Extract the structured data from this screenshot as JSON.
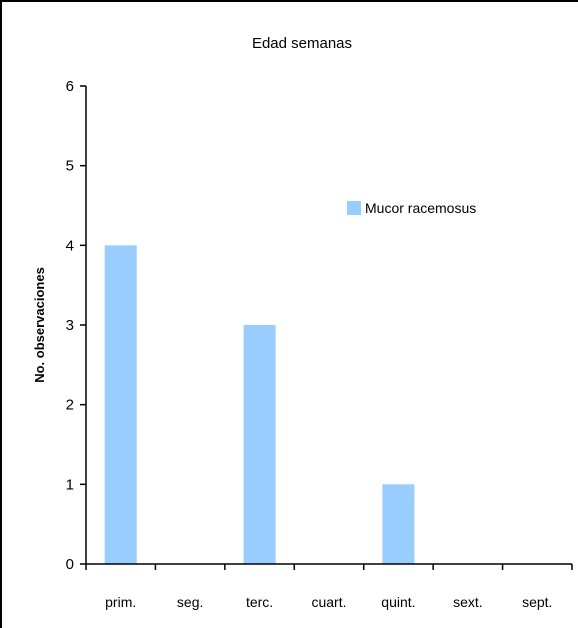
{
  "chart_data": {
    "type": "bar",
    "title": "Edad semanas",
    "ylabel": "No. observaciones",
    "xlabel": "",
    "categories": [
      "prim.",
      "seg.",
      "terc.",
      "cuart.",
      "quint.",
      "sext.",
      "sept."
    ],
    "series": [
      {
        "name": "Mucor racemosus",
        "values": [
          4,
          0,
          3,
          0,
          1,
          0,
          0
        ]
      }
    ],
    "ylim": [
      0,
      6
    ],
    "yticks": [
      "0",
      "1",
      "2",
      "3",
      "4",
      "5",
      "6"
    ],
    "grid": false,
    "legend": "right",
    "colors": {
      "bar": "#99ccff",
      "axis": "#000000",
      "frame": "#000000"
    }
  }
}
